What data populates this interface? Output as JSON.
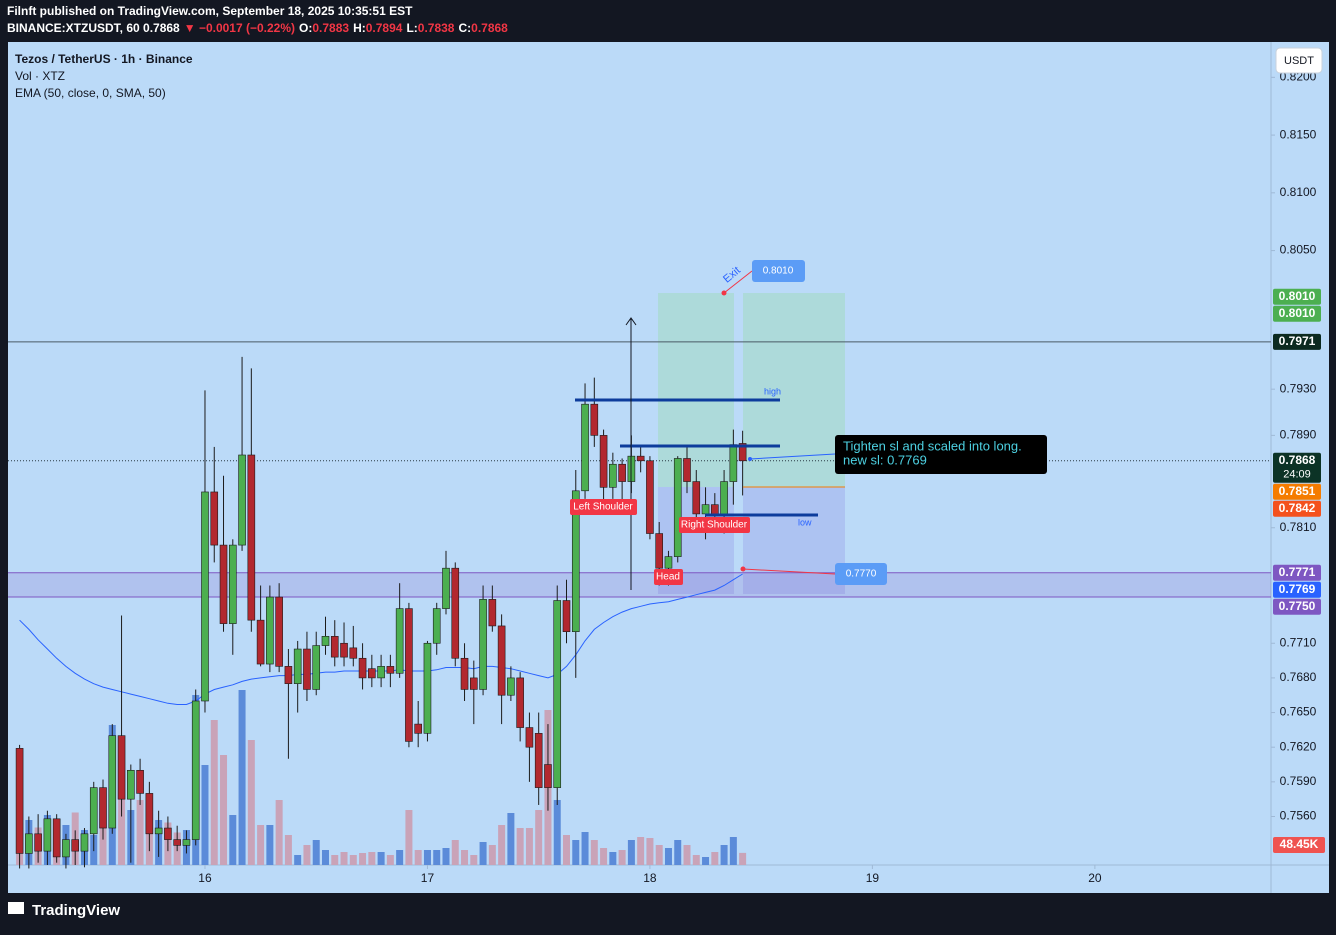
{
  "header": {
    "published": "Filnft published on TradingView.com, September 18, 2025 10:35:51 EST",
    "symbol": "BINANCE:XTZUSDT, 60",
    "price": "0.7868",
    "change": "▼ −0.0017 (−0.22%)",
    "ohlc": [
      [
        "O:",
        "0.7883"
      ],
      [
        "H:",
        "0.7894"
      ],
      [
        "L:",
        "0.7838"
      ],
      [
        "C:",
        "0.7868"
      ]
    ]
  },
  "currency": "USDT",
  "annotations": {
    "left_shoulder": "Left Shoulder",
    "head": "Head",
    "right_shoulder": "Right Shoulder",
    "high": "high",
    "low": "low",
    "exit": "Exit",
    "exit_price": "0.8010",
    "sl_price": "0.7770",
    "comment": [
      "Tighten sl and scaled into long.",
      "new sl: 0.7769"
    ]
  },
  "footer": {
    "logo": "TradingView"
  },
  "chart_data": {
    "type": "candlestick",
    "title": "Tezos / TetherUS · 1h · Binance",
    "up_color": "#4caf50",
    "down_color": "#b2282f",
    "xlim": [
      -21.25,
      115
    ],
    "xticks": [
      {
        "value": 0,
        "label": "16"
      },
      {
        "value": 24,
        "label": "17"
      },
      {
        "value": 48,
        "label": "18"
      },
      {
        "value": 72,
        "label": "19"
      },
      {
        "value": 96,
        "label": "20"
      }
    ],
    "ylim": [
      0.7518,
      0.8228
    ],
    "yticks": [
      {
        "value": 0.82,
        "label": "0.8200"
      },
      {
        "value": 0.815,
        "label": "0.8150"
      },
      {
        "value": 0.81,
        "label": "0.8100"
      },
      {
        "value": 0.805,
        "label": "0.8050"
      },
      {
        "value": 0.793,
        "label": "0.7930"
      },
      {
        "value": 0.789,
        "label": "0.7890"
      },
      {
        "value": 0.781,
        "label": "0.7810"
      },
      {
        "value": 0.771,
        "label": "0.7710"
      },
      {
        "value": 0.768,
        "label": "0.7680"
      },
      {
        "value": 0.765,
        "label": "0.7650"
      },
      {
        "value": 0.762,
        "label": "0.7620"
      },
      {
        "value": 0.759,
        "label": "0.7590"
      },
      {
        "value": 0.756,
        "label": "0.7560"
      }
    ],
    "x": [
      -20,
      -19,
      -18,
      -17,
      -16,
      -15,
      -14,
      -13,
      -12,
      -11,
      -10,
      -9,
      -8,
      -7,
      -6,
      -5,
      -4,
      -3,
      -2,
      -1,
      0,
      1,
      2,
      3,
      4,
      5,
      6,
      7,
      8,
      9,
      10,
      11,
      12,
      13,
      14,
      15,
      16,
      17,
      18,
      19,
      20,
      21,
      22,
      23,
      24,
      25,
      26,
      27,
      28,
      29,
      30,
      31,
      32,
      33,
      34,
      35,
      36,
      37,
      38,
      39,
      40,
      41,
      42,
      43,
      44,
      45,
      46,
      47,
      48,
      49,
      50,
      51,
      52,
      53,
      54,
      55,
      56,
      57,
      58
    ],
    "open": [
      0.7619,
      0.7528,
      0.7545,
      0.753,
      0.7558,
      0.7525,
      0.754,
      0.753,
      0.7545,
      0.7585,
      0.755,
      0.763,
      0.7575,
      0.76,
      0.758,
      0.7545,
      0.755,
      0.754,
      0.7535,
      0.754,
      0.766,
      0.7841,
      0.7795,
      0.7727,
      0.7795,
      0.7873,
      0.773,
      0.7692,
      0.775,
      0.769,
      0.7675,
      0.7705,
      0.767,
      0.7708,
      0.7716,
      0.771,
      0.7706,
      0.7697,
      0.7688,
      0.768,
      0.769,
      0.7684,
      0.774,
      0.764,
      0.7632,
      0.771,
      0.774,
      0.7775,
      0.7697,
      0.768,
      0.767,
      0.7748,
      0.7725,
      0.7665,
      0.768,
      0.7637,
      0.7632,
      0.7605,
      0.7585,
      0.7747,
      0.772,
      0.7842,
      0.7917,
      0.789,
      0.7845,
      0.7865,
      0.785,
      0.7872,
      0.7868,
      0.7805,
      0.7775,
      0.7785,
      0.787,
      0.785,
      0.7822,
      0.783,
      0.7822,
      0.785,
      0.7883
    ],
    "high": [
      0.7622,
      0.756,
      0.7562,
      0.7565,
      0.7562,
      0.7545,
      0.7548,
      0.755,
      0.759,
      0.7592,
      0.764,
      0.7734,
      0.7605,
      0.761,
      0.759,
      0.7565,
      0.756,
      0.7552,
      0.7548,
      0.767,
      0.7929,
      0.788,
      0.7855,
      0.78,
      0.7958,
      0.7948,
      0.776,
      0.776,
      0.7762,
      0.7705,
      0.7712,
      0.772,
      0.772,
      0.7733,
      0.773,
      0.7728,
      0.7725,
      0.771,
      0.77,
      0.77,
      0.77,
      0.7762,
      0.7745,
      0.766,
      0.7712,
      0.7745,
      0.779,
      0.778,
      0.771,
      0.7695,
      0.776,
      0.776,
      0.7735,
      0.769,
      0.7685,
      0.765,
      0.765,
      0.764,
      0.776,
      0.7765,
      0.786,
      0.7935,
      0.794,
      0.7895,
      0.7875,
      0.787,
      0.789,
      0.788,
      0.7872,
      0.7815,
      0.779,
      0.7872,
      0.788,
      0.786,
      0.7845,
      0.784,
      0.786,
      0.7895,
      0.7894
    ],
    "low": [
      0.7515,
      0.7515,
      0.752,
      0.7518,
      0.752,
      0.7515,
      0.7518,
      0.7516,
      0.753,
      0.754,
      0.7545,
      0.756,
      0.752,
      0.757,
      0.753,
      0.7525,
      0.753,
      0.753,
      0.7528,
      0.7535,
      0.765,
      0.778,
      0.772,
      0.77,
      0.779,
      0.772,
      0.769,
      0.7685,
      0.7685,
      0.761,
      0.765,
      0.766,
      0.7665,
      0.77,
      0.769,
      0.769,
      0.769,
      0.767,
      0.7672,
      0.7672,
      0.7672,
      0.768,
      0.762,
      0.762,
      0.7625,
      0.77,
      0.7735,
      0.769,
      0.766,
      0.764,
      0.7665,
      0.772,
      0.764,
      0.766,
      0.7625,
      0.759,
      0.757,
      0.7565,
      0.757,
      0.771,
      0.768,
      0.7835,
      0.788,
      0.783,
      0.7835,
      0.783,
      0.784,
      0.7858,
      0.78,
      0.776,
      0.776,
      0.778,
      0.784,
      0.7815,
      0.78,
      0.781,
      0.7805,
      0.783,
      0.7838
    ],
    "close": [
      0.7528,
      0.7545,
      0.753,
      0.7558,
      0.7525,
      0.754,
      0.753,
      0.7545,
      0.7585,
      0.755,
      0.763,
      0.7575,
      0.76,
      0.758,
      0.7545,
      0.755,
      0.754,
      0.7535,
      0.754,
      0.766,
      0.7841,
      0.7795,
      0.7727,
      0.7795,
      0.7873,
      0.773,
      0.7692,
      0.775,
      0.769,
      0.7675,
      0.7705,
      0.767,
      0.7708,
      0.7716,
      0.7698,
      0.7698,
      0.7697,
      0.768,
      0.768,
      0.769,
      0.7684,
      0.774,
      0.7625,
      0.7632,
      0.771,
      0.774,
      0.7775,
      0.7697,
      0.767,
      0.767,
      0.7748,
      0.7725,
      0.7665,
      0.768,
      0.7637,
      0.762,
      0.7585,
      0.7585,
      0.7747,
      0.772,
      0.7842,
      0.7917,
      0.789,
      0.7845,
      0.7865,
      0.785,
      0.7872,
      0.7868,
      0.7805,
      0.7775,
      0.7785,
      0.787,
      0.785,
      0.7822,
      0.783,
      0.7822,
      0.785,
      0.7882,
      0.7868
    ],
    "volume": {
      "name": "Vol · XTZ",
      "up_color": "#5b8bd9",
      "down_color": "#c9a3b8",
      "badge_color": "#ef5350",
      "ylim": [
        0,
        3280
      ],
      "last_label": "48.45K",
      "values": [
        170,
        180,
        150,
        200,
        130,
        160,
        210,
        140,
        120,
        150,
        560,
        460,
        220,
        260,
        250,
        180,
        170,
        130,
        140,
        680,
        400,
        580,
        440,
        200,
        700,
        500,
        160,
        160,
        260,
        120,
        40,
        80,
        100,
        60,
        40,
        52,
        40,
        48,
        52,
        52,
        40,
        60,
        220,
        60,
        60,
        60,
        68,
        100,
        60,
        40,
        92,
        80,
        160,
        208,
        148,
        148,
        220,
        620,
        260,
        120,
        100,
        132,
        100,
        68,
        52,
        60,
        100,
        112,
        108,
        80,
        68,
        100,
        80,
        40,
        32,
        52,
        80,
        112,
        48.45
      ]
    },
    "ema": {
      "name": "EMA (50, close, 0, SMA, 50)",
      "color": "#2962ff",
      "values": [
        0.773,
        0.7722,
        0.7713,
        0.7705,
        0.7697,
        0.769,
        0.7684,
        0.7679,
        0.7675,
        0.7672,
        0.767,
        0.7668,
        0.7666,
        0.7664,
        0.7662,
        0.766,
        0.7658,
        0.7657,
        0.7657,
        0.766,
        0.7666,
        0.767,
        0.7672,
        0.7674,
        0.7677,
        0.7679,
        0.768,
        0.7681,
        0.7682,
        0.7682,
        0.7683,
        0.7683,
        0.7684,
        0.7685,
        0.7685,
        0.7686,
        0.7686,
        0.7686,
        0.7686,
        0.7686,
        0.7686,
        0.7687,
        0.7686,
        0.7686,
        0.7686,
        0.7687,
        0.7689,
        0.7689,
        0.7689,
        0.7688,
        0.769,
        0.769,
        0.7689,
        0.7688,
        0.7686,
        0.7684,
        0.7682,
        0.768,
        0.7683,
        0.769,
        0.77,
        0.7712,
        0.7722,
        0.7728,
        0.7733,
        0.7737,
        0.774,
        0.7742,
        0.7744,
        0.7745,
        0.7746,
        0.7748,
        0.775,
        0.7752,
        0.7754,
        0.7756,
        0.776,
        0.7765,
        0.777
      ]
    },
    "price_labels": [
      {
        "value": 0.801,
        "label": "0.8010",
        "color": "#4caf50"
      },
      {
        "value": 0.801,
        "label": "0.8010",
        "color": "#4caf50"
      },
      {
        "value": 0.7971,
        "label": "0.7971",
        "color": "#0c2a20",
        "line": "solid"
      },
      {
        "value": 0.7868,
        "label": "0.7868",
        "sublabel": "24:09",
        "color": "#0c3326",
        "line": "dotted"
      },
      {
        "value": 0.7851,
        "label": "0.7851",
        "color": "#f57c00"
      },
      {
        "value": 0.7842,
        "label": "0.7842",
        "color": "#f4511e"
      },
      {
        "value": 0.7771,
        "label": "0.7771",
        "color": "#7e57c2",
        "line": "zone"
      },
      {
        "value": 0.7769,
        "label": "0.7769",
        "color": "#2962ff"
      },
      {
        "value": 0.775,
        "label": "0.7750",
        "color": "#7e57c2",
        "line": "zone"
      }
    ]
  }
}
